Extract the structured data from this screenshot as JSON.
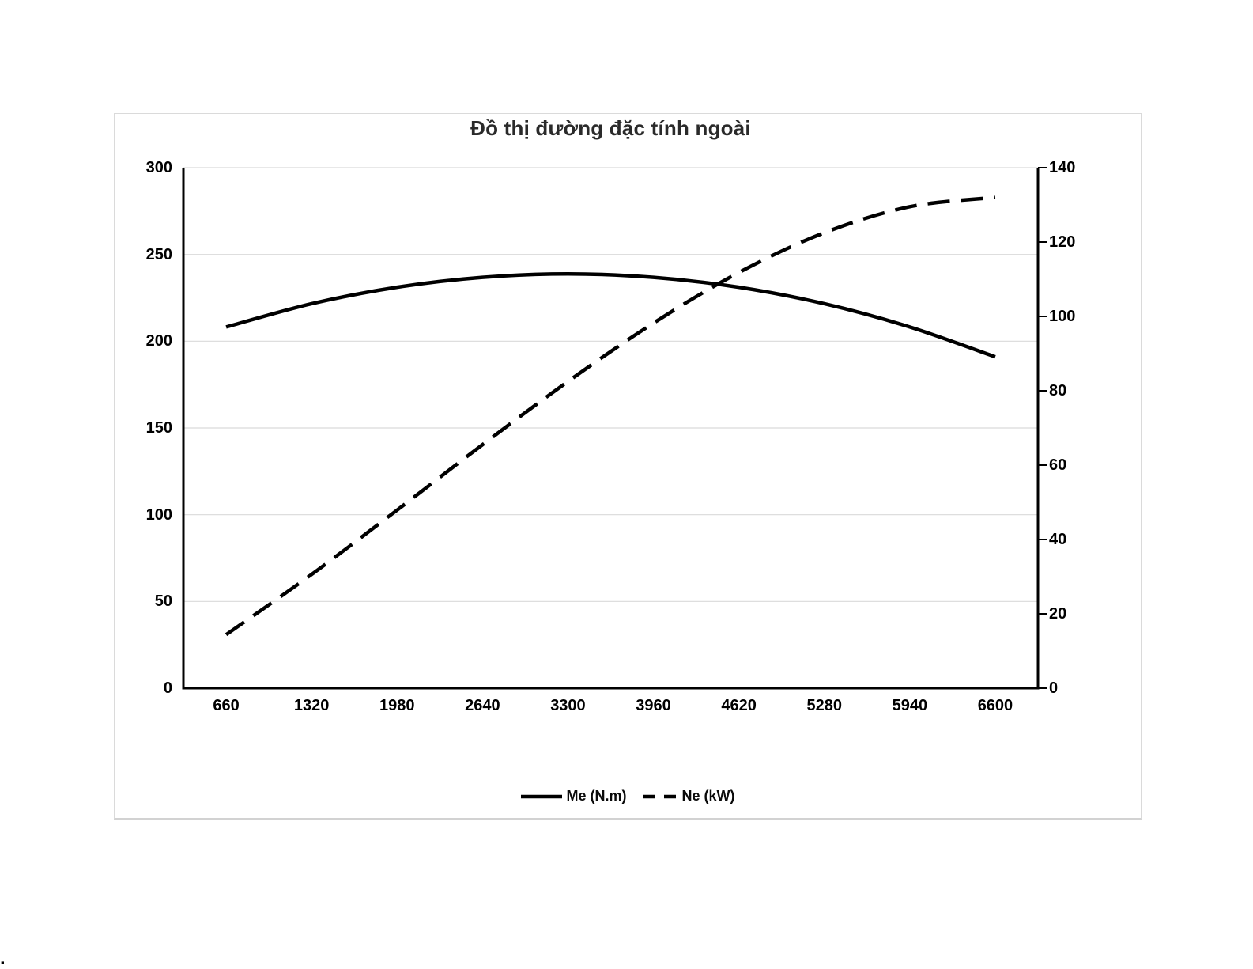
{
  "page": {
    "stray_mark": "."
  },
  "chart": {
    "legend": [
      {
        "label": "Me (N.m)",
        "line_style": "solid"
      },
      {
        "label": "Ne (kW)",
        "line_style": "dashed"
      }
    ],
    "colors": {
      "series_line": "#000000",
      "gridline": "#d9d9d9",
      "axis_line": "#000000",
      "frame_border": "#dadada",
      "tick_label": "#000000",
      "title": "#2a2a2a"
    }
  },
  "chart_data": {
    "type": "line",
    "title": "Đồ thị đường đặc tính ngoài",
    "x": [
      660,
      1320,
      1980,
      2640,
      3300,
      3960,
      4620,
      5280,
      5940,
      6600
    ],
    "x_tick_labels": [
      "660",
      "1320",
      "1980",
      "2640",
      "3300",
      "3960",
      "4620",
      "5280",
      "5940",
      "6600"
    ],
    "xlabel": "",
    "series": [
      {
        "name": "Me (N.m)",
        "axis": "left",
        "line": "solid",
        "values": [
          208.2,
          221.6,
          231.1,
          236.8,
          238.8,
          236.8,
          231.1,
          221.6,
          208.2,
          191.0
        ]
      },
      {
        "name": "Ne (kW)",
        "axis": "right",
        "line": "dashed",
        "values": [
          14.4,
          30.6,
          47.9,
          65.5,
          82.5,
          98.2,
          111.8,
          122.5,
          129.5,
          132.0
        ]
      }
    ],
    "left_axis": {
      "min": 0,
      "max": 300,
      "step": 50,
      "tick_labels": [
        "0",
        "50",
        "100",
        "150",
        "200",
        "250",
        "300"
      ]
    },
    "right_axis": {
      "min": 0,
      "max": 140,
      "step": 20,
      "tick_labels": [
        "0",
        "20",
        "40",
        "60",
        "80",
        "100",
        "120",
        "140"
      ]
    },
    "grid": "horizontal-gray",
    "legend_position": "bottom"
  }
}
